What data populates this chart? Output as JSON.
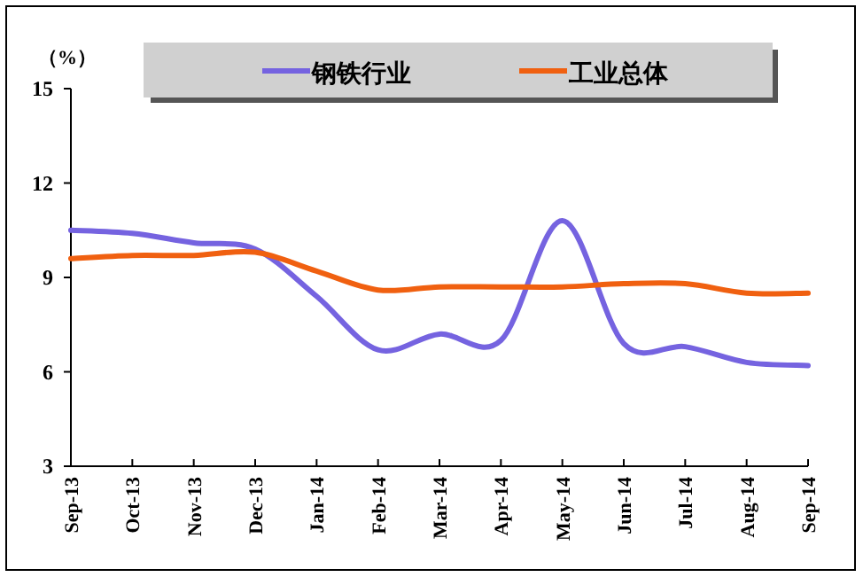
{
  "chart_data": {
    "type": "line",
    "ylabel": "（%）",
    "categories": [
      "Sep-13",
      "Oct-13",
      "Nov-13",
      "Dec-13",
      "Jan-14",
      "Feb-14",
      "Mar-14",
      "Apr-14",
      "May-14",
      "Jun-14",
      "Jul-14",
      "Aug-14",
      "Sep-14"
    ],
    "series": [
      {
        "name": "钢铁行业",
        "color": "#7563e0",
        "values": [
          10.5,
          10.4,
          10.1,
          9.9,
          8.4,
          6.7,
          7.2,
          7.0,
          10.8,
          6.9,
          6.8,
          6.3,
          6.2
        ]
      },
      {
        "name": "工业总体",
        "color": "#f06010",
        "values": [
          9.6,
          9.7,
          9.7,
          9.8,
          9.2,
          8.6,
          8.7,
          8.7,
          8.7,
          8.8,
          8.8,
          8.5,
          8.5
        ]
      }
    ],
    "ylim": [
      3,
      15
    ],
    "yticks": [
      3,
      6,
      9,
      12,
      15
    ],
    "grid": false,
    "legend": "top",
    "marker": "none",
    "line_style": "solid"
  }
}
